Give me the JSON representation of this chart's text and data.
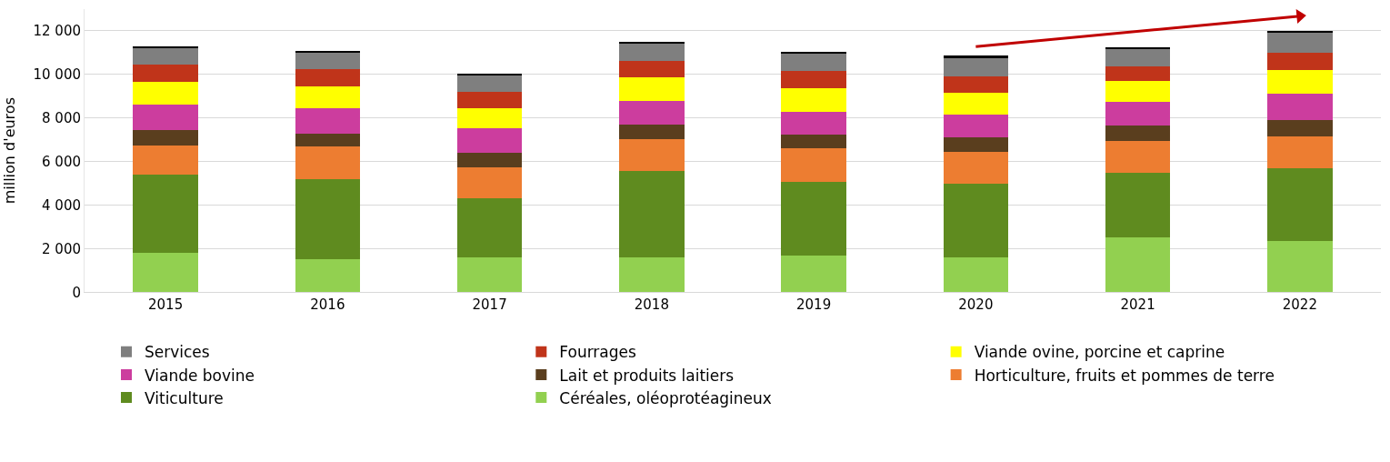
{
  "chart_data": {
    "type": "bar",
    "stacked": true,
    "ylabel": "million d'euros",
    "categories": [
      "2015",
      "2016",
      "2017",
      "2018",
      "2019",
      "2020",
      "2021",
      "2022"
    ],
    "ylim": [
      0,
      13000
    ],
    "yticks": [
      0,
      {
        "value": 2000,
        "label": "2 000"
      },
      {
        "value": 4000,
        "label": "4 000"
      },
      {
        "value": 6000,
        "label": "6 000"
      },
      {
        "value": 8000,
        "label": "8 000"
      },
      {
        "value": 10000,
        "label": "10 000"
      },
      {
        "value": 12000,
        "label": "12 000"
      }
    ],
    "grid": "y",
    "legend": "bottom",
    "series": [
      {
        "name": "Céréales, oléoprotéagineux",
        "color": "#92d050",
        "values": [
          1800,
          1500,
          1600,
          1600,
          1700,
          1600,
          2500,
          2350
        ]
      },
      {
        "name": "Viticulture",
        "color": "#5f8b1f",
        "values": [
          3600,
          3700,
          2700,
          3950,
          3350,
          3400,
          3000,
          3350
        ]
      },
      {
        "name": "Horticulture, fruits et pommes de terre",
        "color": "#ed7d31",
        "values": [
          1350,
          1500,
          1450,
          1500,
          1550,
          1450,
          1450,
          1450
        ]
      },
      {
        "name": "Lait et produits laitiers",
        "color": "#5a3e1e",
        "values": [
          700,
          600,
          650,
          650,
          650,
          650,
          700,
          750
        ]
      },
      {
        "name": "Viande bovine",
        "color": "#cc3d9e",
        "values": [
          1150,
          1150,
          1150,
          1100,
          1050,
          1050,
          1100,
          1200
        ]
      },
      {
        "name": "Viande ovine, porcine et caprine",
        "color": "#ffff00",
        "values": [
          1050,
          1000,
          900,
          1050,
          1050,
          1000,
          950,
          1100
        ]
      },
      {
        "name": "Fourrages",
        "color": "#c0341a",
        "values": [
          800,
          800,
          750,
          750,
          800,
          750,
          650,
          800
        ]
      },
      {
        "name": "Services",
        "color": "#7f7f7f",
        "values": [
          750,
          750,
          750,
          800,
          800,
          850,
          800,
          900
        ]
      },
      {
        "color": "#000000",
        "values": [
          100,
          100,
          100,
          100,
          100,
          100,
          100,
          100
        ]
      },
      {
        "type": "line",
        "color": "#c00000",
        "marker": "triangle",
        "values": [
          null,
          null,
          null,
          null,
          null,
          11280,
          null,
          12680
        ]
      }
    ]
  }
}
